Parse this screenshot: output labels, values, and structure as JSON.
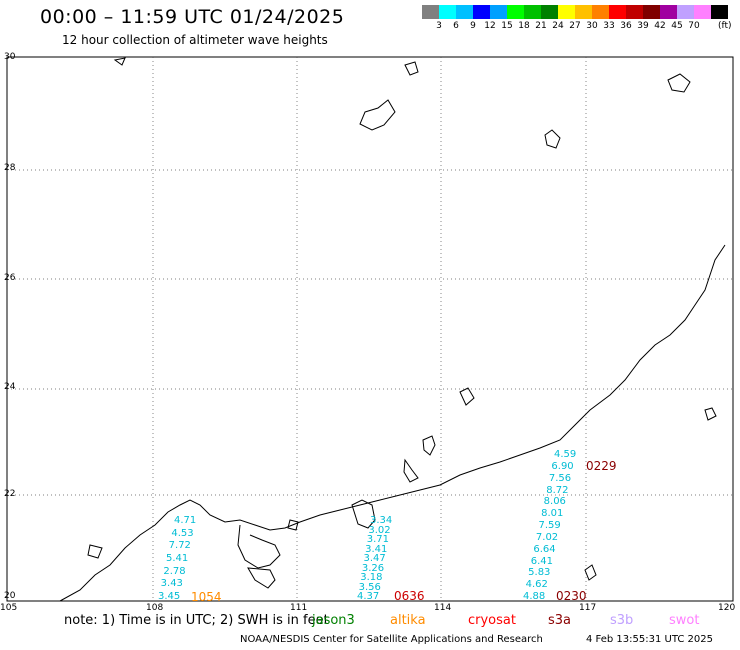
{
  "header": {
    "title": "00:00 – 11:59 UTC 01/24/2025",
    "subtitle": "12 hour collection of altimeter wave heights"
  },
  "colorbar": {
    "swatch_colors": [
      "#808080",
      "#00ffff",
      "#00c0ff",
      "#0000ff",
      "#00a0ff",
      "#00ff00",
      "#00c000",
      "#008000",
      "#ffff00",
      "#ffc000",
      "#ff8000",
      "#ff0000",
      "#c00000",
      "#800000",
      "#a000a0",
      "#c0a0ff",
      "#ff80ff",
      "#000000"
    ],
    "tick_labels": [
      "3",
      "6",
      "9",
      "12",
      "15",
      "18",
      "21",
      "24",
      "27",
      "30",
      "33",
      "36",
      "39",
      "42",
      "45",
      "70"
    ],
    "unit": "(ft)"
  },
  "axes": {
    "lat_labels": [
      "30",
      "28",
      "26",
      "24",
      "22",
      "20"
    ],
    "lon_labels": [
      "105",
      "108",
      "111",
      "114",
      "117",
      "120"
    ]
  },
  "tracks": [
    {
      "color": "#00bcd4",
      "values": [
        "4.59",
        "6.90",
        "7.56",
        "8.72",
        "8.06",
        "8.01",
        "7.59",
        "7.02",
        "6.64",
        "6.41",
        "5.83",
        "4.62",
        "4.88"
      ]
    },
    {
      "color": "#00bcd4",
      "values": [
        "4.71",
        "4.53",
        "7.72",
        "5.41",
        "2.78",
        "3.43",
        "3.45"
      ]
    },
    {
      "color": "#00bcd4",
      "values": [
        "3.34",
        "3.02",
        "3.71",
        "3.41",
        "3.47",
        "3.26",
        "3.18",
        "3.56",
        "4.37"
      ]
    }
  ],
  "track_times": [
    {
      "text": "0229",
      "color": "#8b0000"
    },
    {
      "text": "0636",
      "color": "#cc0000"
    },
    {
      "text": "1054",
      "color": "#ff8c00"
    },
    {
      "text": "0230",
      "color": "#8b0000"
    }
  ],
  "footer": {
    "note": "note: 1) Time is in UTC; 2) SWH is in feet",
    "satellites": [
      {
        "name": "jason3",
        "color": "#008000"
      },
      {
        "name": "altika",
        "color": "#ff8c00"
      },
      {
        "name": "cryosat",
        "color": "#ff0000"
      },
      {
        "name": "s3a",
        "color": "#8b0000"
      },
      {
        "name": "s3b",
        "color": "#c0a0ff"
      },
      {
        "name": "swot",
        "color": "#ff80ff"
      }
    ],
    "credit": "NOAA/NESDIS Center for Satellite Applications and Research",
    "stamp": "4 Feb 13:55:31 UTC 2025"
  }
}
